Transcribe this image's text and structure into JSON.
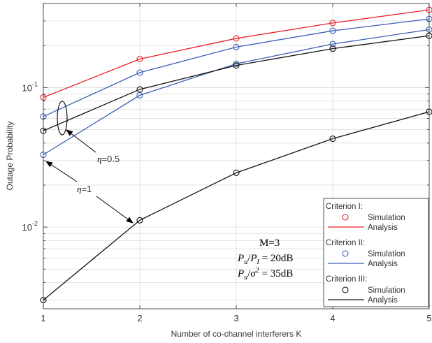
{
  "chart_data": {
    "type": "line",
    "xlabel": "Number of co-channel interferers K",
    "ylabel": "Outage Probability",
    "xlim": [
      1,
      5
    ],
    "ylim": [
      0.0026,
      0.4
    ],
    "yscale": "log",
    "grid": true,
    "x": [
      1,
      2,
      3,
      4,
      5
    ],
    "x_ticks": [
      "1",
      "2",
      "3",
      "4",
      "5"
    ],
    "y_ticks": [
      {
        "base": "10",
        "exp": "-2",
        "value": 0.01
      },
      {
        "base": "10",
        "exp": "-1",
        "value": 0.1
      }
    ],
    "series": [
      {
        "group": "Criterion I",
        "eta": "0.5",
        "color": "#e8202a",
        "values": [
          0.085,
          0.16,
          0.225,
          0.29,
          0.36
        ]
      },
      {
        "group": "Criterion II",
        "eta": "0.5",
        "color": "#3b5fb6",
        "values": [
          0.062,
          0.128,
          0.195,
          0.255,
          0.31
        ]
      },
      {
        "group": "Criterion II",
        "eta": "1",
        "color": "#3b5fb6",
        "values": [
          0.033,
          0.088,
          0.148,
          0.205,
          0.26
        ]
      },
      {
        "group": "Criterion III",
        "eta": "0.5",
        "color": "#111111",
        "values": [
          0.049,
          0.097,
          0.144,
          0.19,
          0.235
        ]
      },
      {
        "group": "Criterion III",
        "eta": "1",
        "color": "#111111",
        "values": [
          0.003,
          0.0112,
          0.0245,
          0.043,
          0.067
        ]
      }
    ],
    "legend": {
      "placement": "bottom-right",
      "groups": [
        {
          "title": "Criterion I:",
          "color": "#e8202a",
          "marker_label": "Simulation",
          "line_label": "Analysis"
        },
        {
          "title": "Criterion II:",
          "color": "#3b5fb6",
          "marker_label": "Simulation",
          "line_label": "Analysis"
        },
        {
          "title": "Criterion III:",
          "color": "#111111",
          "marker_label": "Simulation",
          "line_label": "Analysis"
        }
      ]
    },
    "annotations": {
      "eta_half": {
        "symbol": "η",
        "value": "=0.5"
      },
      "eta_one": {
        "symbol": "η",
        "value": "=1"
      },
      "params": {
        "m": "M=3",
        "pi_num": "P",
        "pi_num_sub": "u",
        "pi_den": "P",
        "pi_den_sub": "I",
        "pi_value": " = 20dB",
        "sg_num": "P",
        "sg_num_sub": "u",
        "sg_den": "σ",
        "sg_den_sup": "2",
        "sg_value": " = 35dB"
      }
    }
  }
}
